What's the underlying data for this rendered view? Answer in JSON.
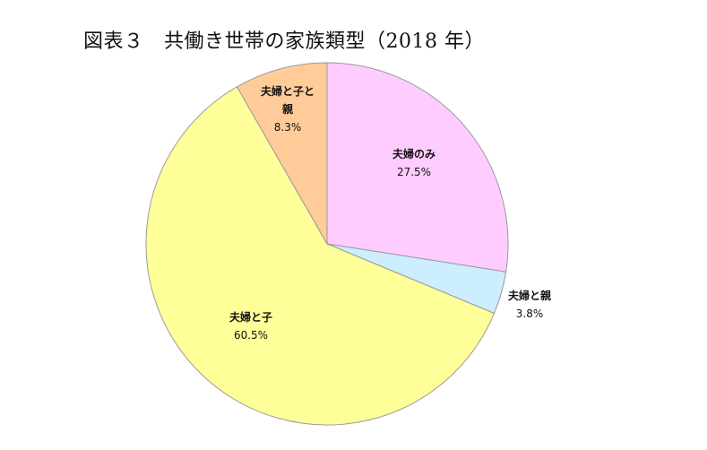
{
  "title": "図表３　共働き世帯の家族類型（2018 年）",
  "chart_data": {
    "type": "pie",
    "title": "図表３　共働き世帯の家族類型（2018 年）",
    "start_angle_deg": 0,
    "direction": "clockwise",
    "slices": [
      {
        "label_lines": [
          "夫婦のみ"
        ],
        "value": 27.5,
        "value_label": "27.5%",
        "color": "#ffccff"
      },
      {
        "label_lines": [
          "夫婦と親"
        ],
        "value": 3.8,
        "value_label": "3.8%",
        "color": "#cceeff"
      },
      {
        "label_lines": [
          "夫婦と子"
        ],
        "value": 60.5,
        "value_label": "60.5%",
        "color": "#ffff99"
      },
      {
        "label_lines": [
          "夫婦と子と",
          "親"
        ],
        "value": 8.3,
        "value_label": "8.3%",
        "color": "#ffcc99"
      }
    ]
  }
}
